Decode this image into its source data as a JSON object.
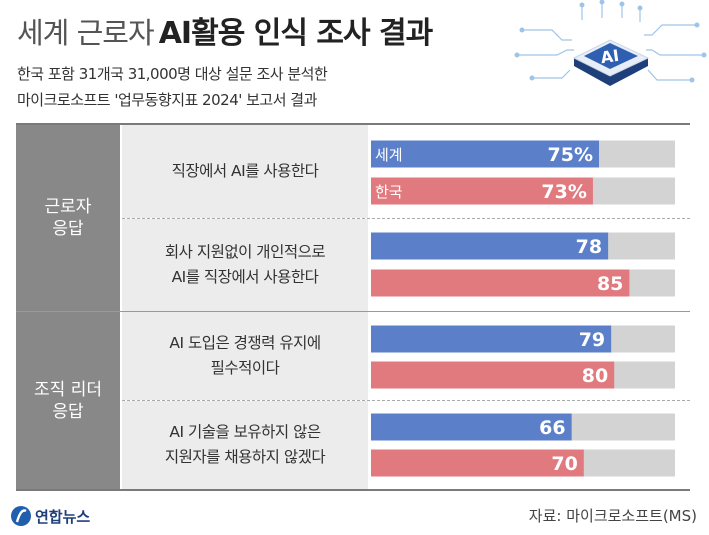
{
  "header": {
    "title_prefix": "세계 근로자",
    "title_main": "AI활용 인식 조사 결과",
    "subtitle_line1": "한국 포함 31개국 31,000명 대상 설문 조사 분석한",
    "subtitle_line2": "마이크로소프트 '업무동향지표 2024' 보고서 결과",
    "chip_label": "AI"
  },
  "chart_data": {
    "type": "bar",
    "orientation": "horizontal",
    "series_colors": {
      "world": "#5b7fc8",
      "korea": "#e07a7f",
      "track": "#d3d3d3"
    },
    "xlim": [
      0,
      100
    ],
    "groups": [
      {
        "label": "근로자 응답",
        "questions": [
          {
            "text": "직장에서 AI를 사용한다",
            "bars": [
              {
                "series": "세계",
                "value": 75,
                "label": "75%"
              },
              {
                "series": "한국",
                "value": 73,
                "label": "73%"
              }
            ]
          },
          {
            "text": "회사 지원없이 개인적으로 AI를 직장에서 사용한다",
            "bars": [
              {
                "series": "world",
                "value": 78,
                "label": "78"
              },
              {
                "series": "korea",
                "value": 85,
                "label": "85"
              }
            ]
          }
        ]
      },
      {
        "label": "조직 리더 응답",
        "questions": [
          {
            "text": "AI 도입은 경쟁력 유지에 필수적이다",
            "bars": [
              {
                "series": "world",
                "value": 79,
                "label": "79"
              },
              {
                "series": "korea",
                "value": 80,
                "label": "80"
              }
            ]
          },
          {
            "text": "AI 기술을 보유하지 않은 지원자를 채용하지 않겠다",
            "bars": [
              {
                "series": "world",
                "value": 66,
                "label": "66"
              },
              {
                "series": "korea",
                "value": 70,
                "label": "70"
              }
            ]
          }
        ]
      }
    ]
  },
  "rows": {
    "q1_line1": "직장에서 AI를 사용한다",
    "q2_line1": "회사 지원없이 개인적으로",
    "q2_line2": "AI를 직장에서 사용한다",
    "q3_line1": "AI 도입은 경쟁력 유지에",
    "q3_line2": "필수적이다",
    "q4_line1": "AI 기술을 보유하지 않은",
    "q4_line2": "지원자를 채용하지 않겠다",
    "group1_line1": "근로자",
    "group1_line2": "응답",
    "group2_line1": "조직 리더",
    "group2_line2": "응답"
  },
  "footer": {
    "logo_text": "연합뉴스",
    "source": "자료: 마이크로소프트(MS)"
  }
}
